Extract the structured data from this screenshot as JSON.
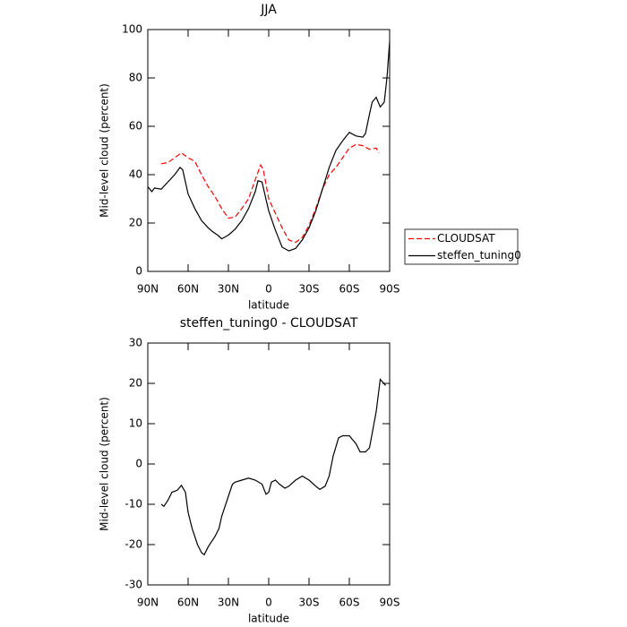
{
  "chart_data": [
    {
      "type": "line",
      "title": "JJA",
      "xlabel": "latitude",
      "ylabel": "Mid-level cloud (percent)",
      "xlim": [
        90,
        -90
      ],
      "xticks": [
        {
          "value": 90,
          "label": "90N"
        },
        {
          "value": 60,
          "label": "60N"
        },
        {
          "value": 30,
          "label": "30N"
        },
        0,
        {
          "value": -30,
          "label": "30S"
        },
        {
          "value": -60,
          "label": "60S"
        },
        {
          "value": -90,
          "label": "90S"
        }
      ],
      "ylim": [
        0,
        100
      ],
      "yticks": [
        0,
        20,
        40,
        60,
        80,
        100
      ],
      "series": [
        {
          "name": "CLOUDSAT",
          "color": "#ff0000",
          "linestyle": "dashed",
          "x": [
            80,
            75,
            70,
            65,
            60,
            55,
            50,
            45,
            40,
            35,
            30,
            25,
            20,
            15,
            10,
            6,
            4,
            0,
            -5,
            -10,
            -15,
            -20,
            -25,
            -30,
            -35,
            -40,
            -45,
            -50,
            -55,
            -60,
            -65,
            -70,
            -75,
            -80,
            -82
          ],
          "values": [
            44.5,
            45,
            47,
            49,
            47,
            45.5,
            40,
            35,
            31,
            26,
            22,
            22.5,
            26,
            30,
            38,
            44,
            42,
            30,
            24,
            18,
            13,
            12,
            14,
            19,
            26,
            34,
            40,
            43,
            47,
            51,
            52.5,
            52,
            50.5,
            51,
            49
          ]
        },
        {
          "name": "steffen_tuning0",
          "color": "#000000",
          "linestyle": "solid",
          "x": [
            90,
            87,
            85,
            80,
            75,
            70,
            66,
            64,
            60,
            55,
            50,
            45,
            42,
            38,
            35,
            30,
            25,
            20,
            15,
            10,
            8,
            5,
            0,
            -5,
            -10,
            -15,
            -20,
            -25,
            -30,
            -35,
            -40,
            -45,
            -50,
            -55,
            -60,
            -65,
            -70,
            -72,
            -75,
            -77,
            -80,
            -83,
            -86,
            -88,
            -90
          ],
          "values": [
            35,
            33,
            34.5,
            34,
            37,
            40,
            43,
            42,
            32,
            26,
            21,
            18,
            16.5,
            15,
            13.5,
            15,
            17.5,
            21,
            26,
            33,
            37.5,
            37,
            25,
            17,
            10,
            8.5,
            9.5,
            13,
            18,
            25,
            34,
            43,
            50,
            54,
            57.5,
            56,
            55.5,
            57,
            65,
            70,
            72,
            68,
            70,
            80,
            95
          ]
        }
      ]
    },
    {
      "type": "line",
      "title": "steffen_tuning0 - CLOUDSAT",
      "xlabel": "latitude",
      "ylabel": "Mid-level cloud (percent)",
      "xlim": [
        90,
        -90
      ],
      "xticks": [
        {
          "value": 90,
          "label": "90N"
        },
        {
          "value": 60,
          "label": "60N"
        },
        {
          "value": 30,
          "label": "30N"
        },
        0,
        {
          "value": -30,
          "label": "30S"
        },
        {
          "value": -60,
          "label": "60S"
        },
        {
          "value": -90,
          "label": "90S"
        }
      ],
      "ylim": [
        -30,
        30
      ],
      "yticks": [
        -30,
        -20,
        -10,
        0,
        10,
        20,
        30
      ],
      "series": [
        {
          "color": "#000000",
          "linestyle": "solid",
          "x": [
            80,
            78,
            75,
            72,
            68,
            65,
            62,
            60,
            57,
            53,
            50,
            48,
            45,
            40,
            37,
            35,
            30,
            27,
            25,
            20,
            15,
            10,
            5,
            2,
            0,
            -2,
            -5,
            -8,
            -12,
            -15,
            -20,
            -25,
            -30,
            -35,
            -38,
            -42,
            -45,
            -48,
            -52,
            -55,
            -60,
            -65,
            -68,
            -72,
            -75,
            -80,
            -83,
            -87
          ],
          "values": [
            -10,
            -10.5,
            -9,
            -7,
            -6.5,
            -5.3,
            -7,
            -12,
            -16,
            -20,
            -22,
            -22.5,
            -20.5,
            -18,
            -16,
            -13,
            -8,
            -5,
            -4.5,
            -4,
            -3.5,
            -4,
            -5,
            -7.5,
            -7,
            -4.5,
            -4,
            -5,
            -6,
            -5.5,
            -4,
            -3,
            -4,
            -5.5,
            -6.3,
            -5.5,
            -3,
            2,
            6.5,
            7,
            7,
            5,
            3,
            3,
            4,
            13,
            21,
            19.5
          ]
        }
      ]
    }
  ]
}
